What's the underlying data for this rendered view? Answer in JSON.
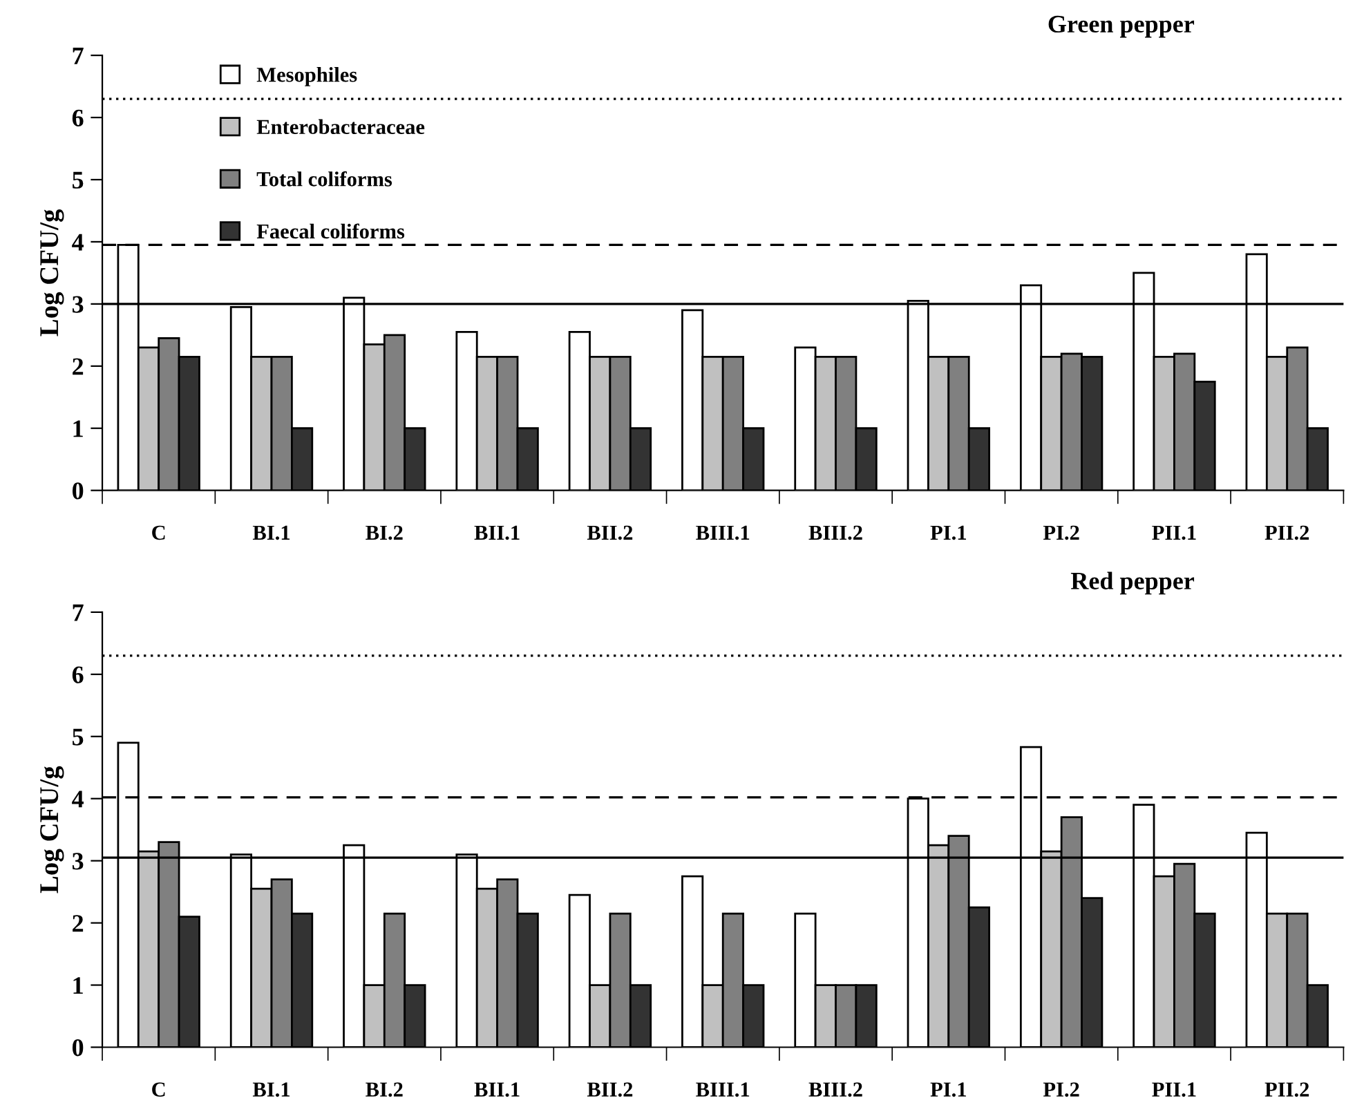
{
  "chart_data": [
    {
      "type": "bar",
      "title": "Green pepper",
      "ylabel": "Log CFU/g",
      "categories": [
        "C",
        "BI.1",
        "BI.2",
        "BII.1",
        "BII.2",
        "BIII.1",
        "BIII.2",
        "PI.1",
        "PI.2",
        "PII.1",
        "PII.2"
      ],
      "series": [
        {
          "name": "Mesophiles",
          "color": "#ffffff",
          "values": [
            3.95,
            2.95,
            3.1,
            2.55,
            2.55,
            2.9,
            2.3,
            3.05,
            3.3,
            3.5,
            3.8
          ]
        },
        {
          "name": "Enterobacteraceae",
          "color": "#c0c0c0",
          "values": [
            2.3,
            2.15,
            2.35,
            2.15,
            2.15,
            2.15,
            2.15,
            2.15,
            2.15,
            2.15,
            2.15
          ]
        },
        {
          "name": "Total coliforms",
          "color": "#808080",
          "values": [
            2.45,
            2.15,
            2.5,
            2.15,
            2.15,
            2.15,
            2.15,
            2.15,
            2.2,
            2.2,
            2.3
          ]
        },
        {
          "name": "Faecal coliforms",
          "color": "#333333",
          "values": [
            2.15,
            1,
            1,
            1,
            1,
            1,
            1,
            1,
            2.15,
            1.75,
            1
          ]
        }
      ],
      "ylim": [
        0,
        7
      ],
      "yticks": [
        0,
        1,
        2,
        3,
        4,
        5,
        6,
        7
      ],
      "grid": false,
      "legend": "top left",
      "ref_lines": [
        {
          "axis": "y",
          "value": 6.3,
          "line_style": "dotted"
        },
        {
          "axis": "y",
          "value": 3.95,
          "line_style": "dashed"
        },
        {
          "axis": "y",
          "value": 3.0,
          "line_style": "solid"
        }
      ]
    },
    {
      "type": "bar",
      "title": "Red pepper",
      "ylabel": "Log CFU/g",
      "categories": [
        "C",
        "BI.1",
        "BI.2",
        "BII.1",
        "BII.2",
        "BIII.1",
        "BIII.2",
        "PI.1",
        "PI.2",
        "PII.1",
        "PII.2"
      ],
      "series": [
        {
          "color": "#ffffff",
          "values": [
            4.9,
            3.1,
            3.25,
            3.1,
            2.45,
            2.75,
            2.15,
            4.0,
            4.83,
            3.9,
            3.45
          ]
        },
        {
          "color": "#c0c0c0",
          "values": [
            3.15,
            2.55,
            1,
            2.55,
            1,
            1,
            1,
            3.25,
            3.15,
            2.75,
            2.15
          ]
        },
        {
          "color": "#808080",
          "values": [
            3.3,
            2.7,
            2.15,
            2.7,
            2.15,
            2.15,
            1,
            3.4,
            3.7,
            2.95,
            2.15
          ]
        },
        {
          "color": "#333333",
          "values": [
            2.1,
            2.15,
            1,
            2.15,
            1,
            1,
            1,
            2.25,
            2.4,
            2.15,
            1
          ]
        }
      ],
      "ylim": [
        0,
        7
      ],
      "yticks": [
        0,
        1,
        2,
        3,
        4,
        5,
        6,
        7
      ],
      "grid": false,
      "legend": false,
      "ref_lines": [
        {
          "axis": "y",
          "value": 6.3,
          "line_style": "dotted"
        },
        {
          "axis": "y",
          "value": 4.02,
          "line_style": "dashed"
        },
        {
          "axis": "y",
          "value": 3.05,
          "line_style": "solid"
        }
      ]
    }
  ]
}
